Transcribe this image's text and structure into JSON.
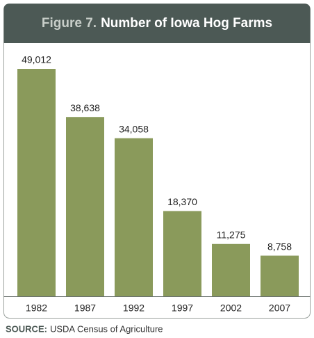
{
  "chart_data": {
    "type": "bar",
    "figure_label": "Figure 7.",
    "title": "Number of Iowa Hog Farms",
    "categories": [
      "1982",
      "1987",
      "1992",
      "1997",
      "2002",
      "2007"
    ],
    "values": [
      49012,
      38638,
      34058,
      18370,
      11275,
      8758
    ],
    "value_labels": [
      "49,012",
      "38,638",
      "34,058",
      "18,370",
      "11,275",
      "8,758"
    ],
    "color": "#8a9a5b",
    "source_label": "SOURCE:",
    "source": "USDA Census of Agriculture"
  }
}
